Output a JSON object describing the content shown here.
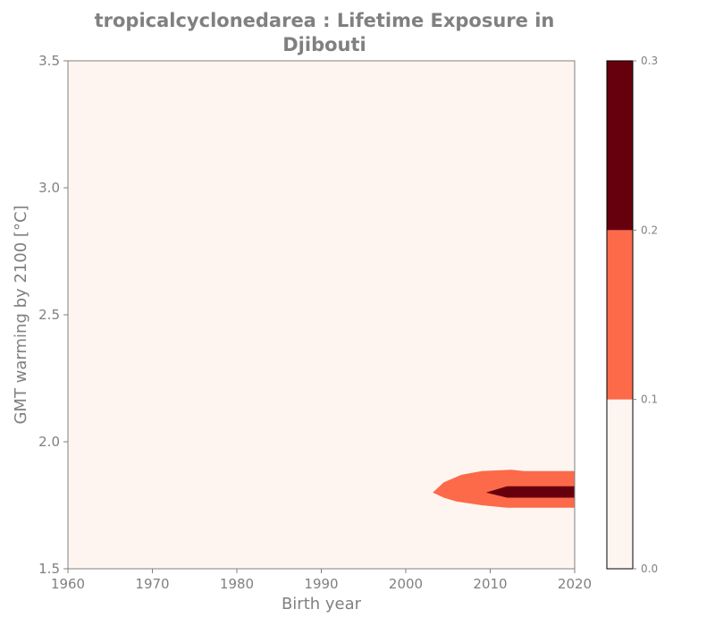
{
  "chart_data": {
    "type": "heatmap",
    "title_line1": "tropicalcyclonedarea : Lifetime Exposure in",
    "title_line2": "Djibouti",
    "xlabel": "Birth year",
    "ylabel": "GMT warming by 2100 [°C]",
    "xlim": [
      1960,
      2020
    ],
    "ylim": [
      1.5,
      3.5
    ],
    "x_ticks": [
      "1960",
      "1970",
      "1980",
      "1990",
      "2000",
      "2010",
      "2020"
    ],
    "y_ticks": [
      "1.5",
      "2.0",
      "2.5",
      "3.0",
      "3.5"
    ],
    "colorbar": {
      "levels": [
        0.0,
        0.1,
        0.2,
        0.3
      ],
      "tick_labels": [
        "0.0",
        "0.1",
        "0.2",
        "0.3"
      ],
      "colors": [
        "#fff5f0",
        "#fc6a4a",
        "#67000d"
      ]
    },
    "contours": [
      {
        "level_range": [
          0.1,
          0.2
        ],
        "color": "#fc6a4a",
        "points": [
          [
            2003.2,
            1.8
          ],
          [
            2004.5,
            1.84
          ],
          [
            2006.6,
            1.87
          ],
          [
            2009.0,
            1.885
          ],
          [
            2012.5,
            1.89
          ],
          [
            2014.0,
            1.885
          ],
          [
            2020.0,
            1.885
          ],
          [
            2020.0,
            1.74
          ],
          [
            2012.0,
            1.74
          ],
          [
            2009.0,
            1.75
          ],
          [
            2006.0,
            1.765
          ],
          [
            2004.5,
            1.78
          ]
        ]
      },
      {
        "level_range": [
          0.2,
          0.3
        ],
        "color": "#67000d",
        "points": [
          [
            2009.5,
            1.8
          ],
          [
            2012.0,
            1.825
          ],
          [
            2020.0,
            1.825
          ],
          [
            2020.0,
            1.78
          ],
          [
            2012.0,
            1.78
          ]
        ]
      }
    ],
    "grid": false
  }
}
